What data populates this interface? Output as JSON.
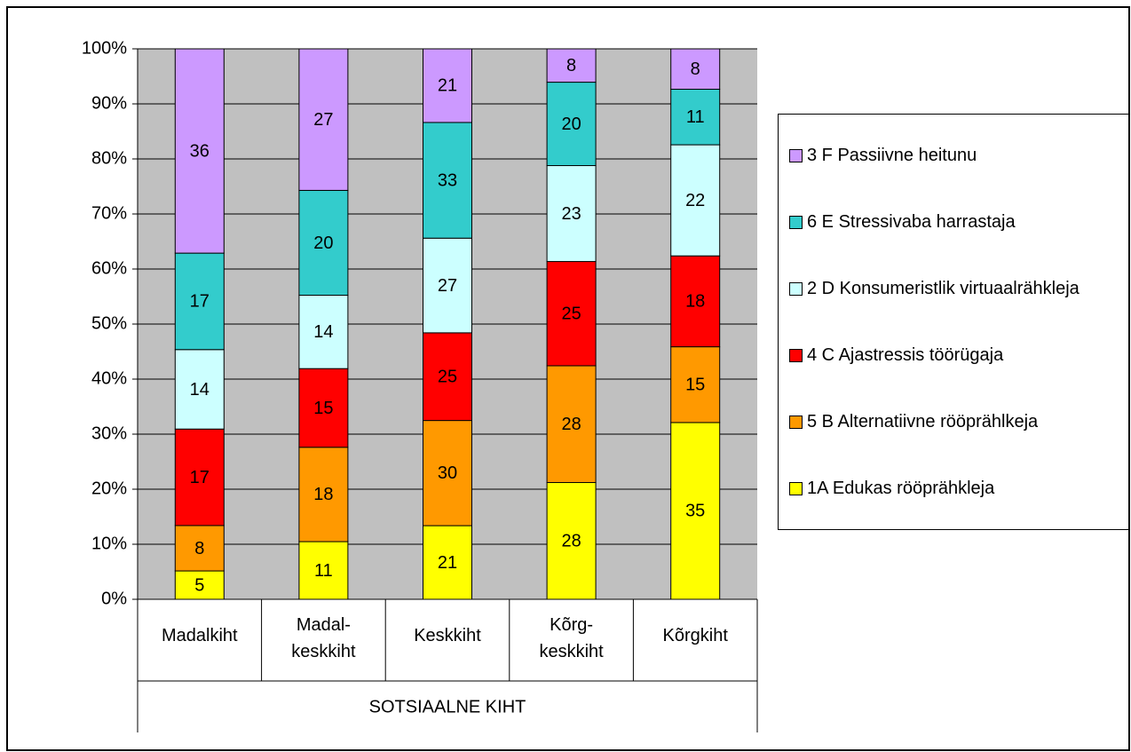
{
  "chart_data": {
    "type": "stacked_bar_percent",
    "xlabel": "SOTSIAALNE KIHT",
    "categories": [
      "Madalkiht",
      "Madal-\nkeskkiht",
      "Keskkiht",
      "Kõrg-\nkeskkiht",
      "Kõrgkiht"
    ],
    "series": [
      {
        "name": "1A Edukas  rööprähkleja",
        "color": "#ffff00",
        "values": [
          5,
          11,
          21,
          28,
          35
        ]
      },
      {
        "name": "5 B Alternatiivne rööprählkeja",
        "color": "#ff9900",
        "values": [
          8,
          18,
          30,
          28,
          15
        ]
      },
      {
        "name": "4 C Ajastressis töörügaja",
        "color": "#ff0000",
        "values": [
          17,
          15,
          25,
          25,
          18
        ]
      },
      {
        "name": "2 D Konsumeristlik virtuaalrähkleja",
        "color": "#ccffff",
        "values": [
          14,
          14,
          27,
          23,
          22
        ]
      },
      {
        "name": "6 E Stressivaba harrastaja",
        "color": "#33cccc",
        "values": [
          17,
          20,
          33,
          20,
          11
        ]
      },
      {
        "name": "3 F Passiivne heitunu",
        "color": "#cc99ff",
        "values": [
          36,
          27,
          21,
          8,
          8
        ]
      }
    ],
    "ylim": [
      0,
      100
    ],
    "yticks": [
      {
        "value": 0,
        "label": "0%"
      },
      {
        "value": 10,
        "label": "10%"
      },
      {
        "value": 20,
        "label": "20%"
      },
      {
        "value": 30,
        "label": "30%"
      },
      {
        "value": 40,
        "label": "40%"
      },
      {
        "value": 50,
        "label": "50%"
      },
      {
        "value": 60,
        "label": "60%"
      },
      {
        "value": 70,
        "label": "70%"
      },
      {
        "value": 80,
        "label": "80%"
      },
      {
        "value": 90,
        "label": "90%"
      },
      {
        "value": 100,
        "label": "100%"
      }
    ],
    "grid": true,
    "legend": "right"
  }
}
